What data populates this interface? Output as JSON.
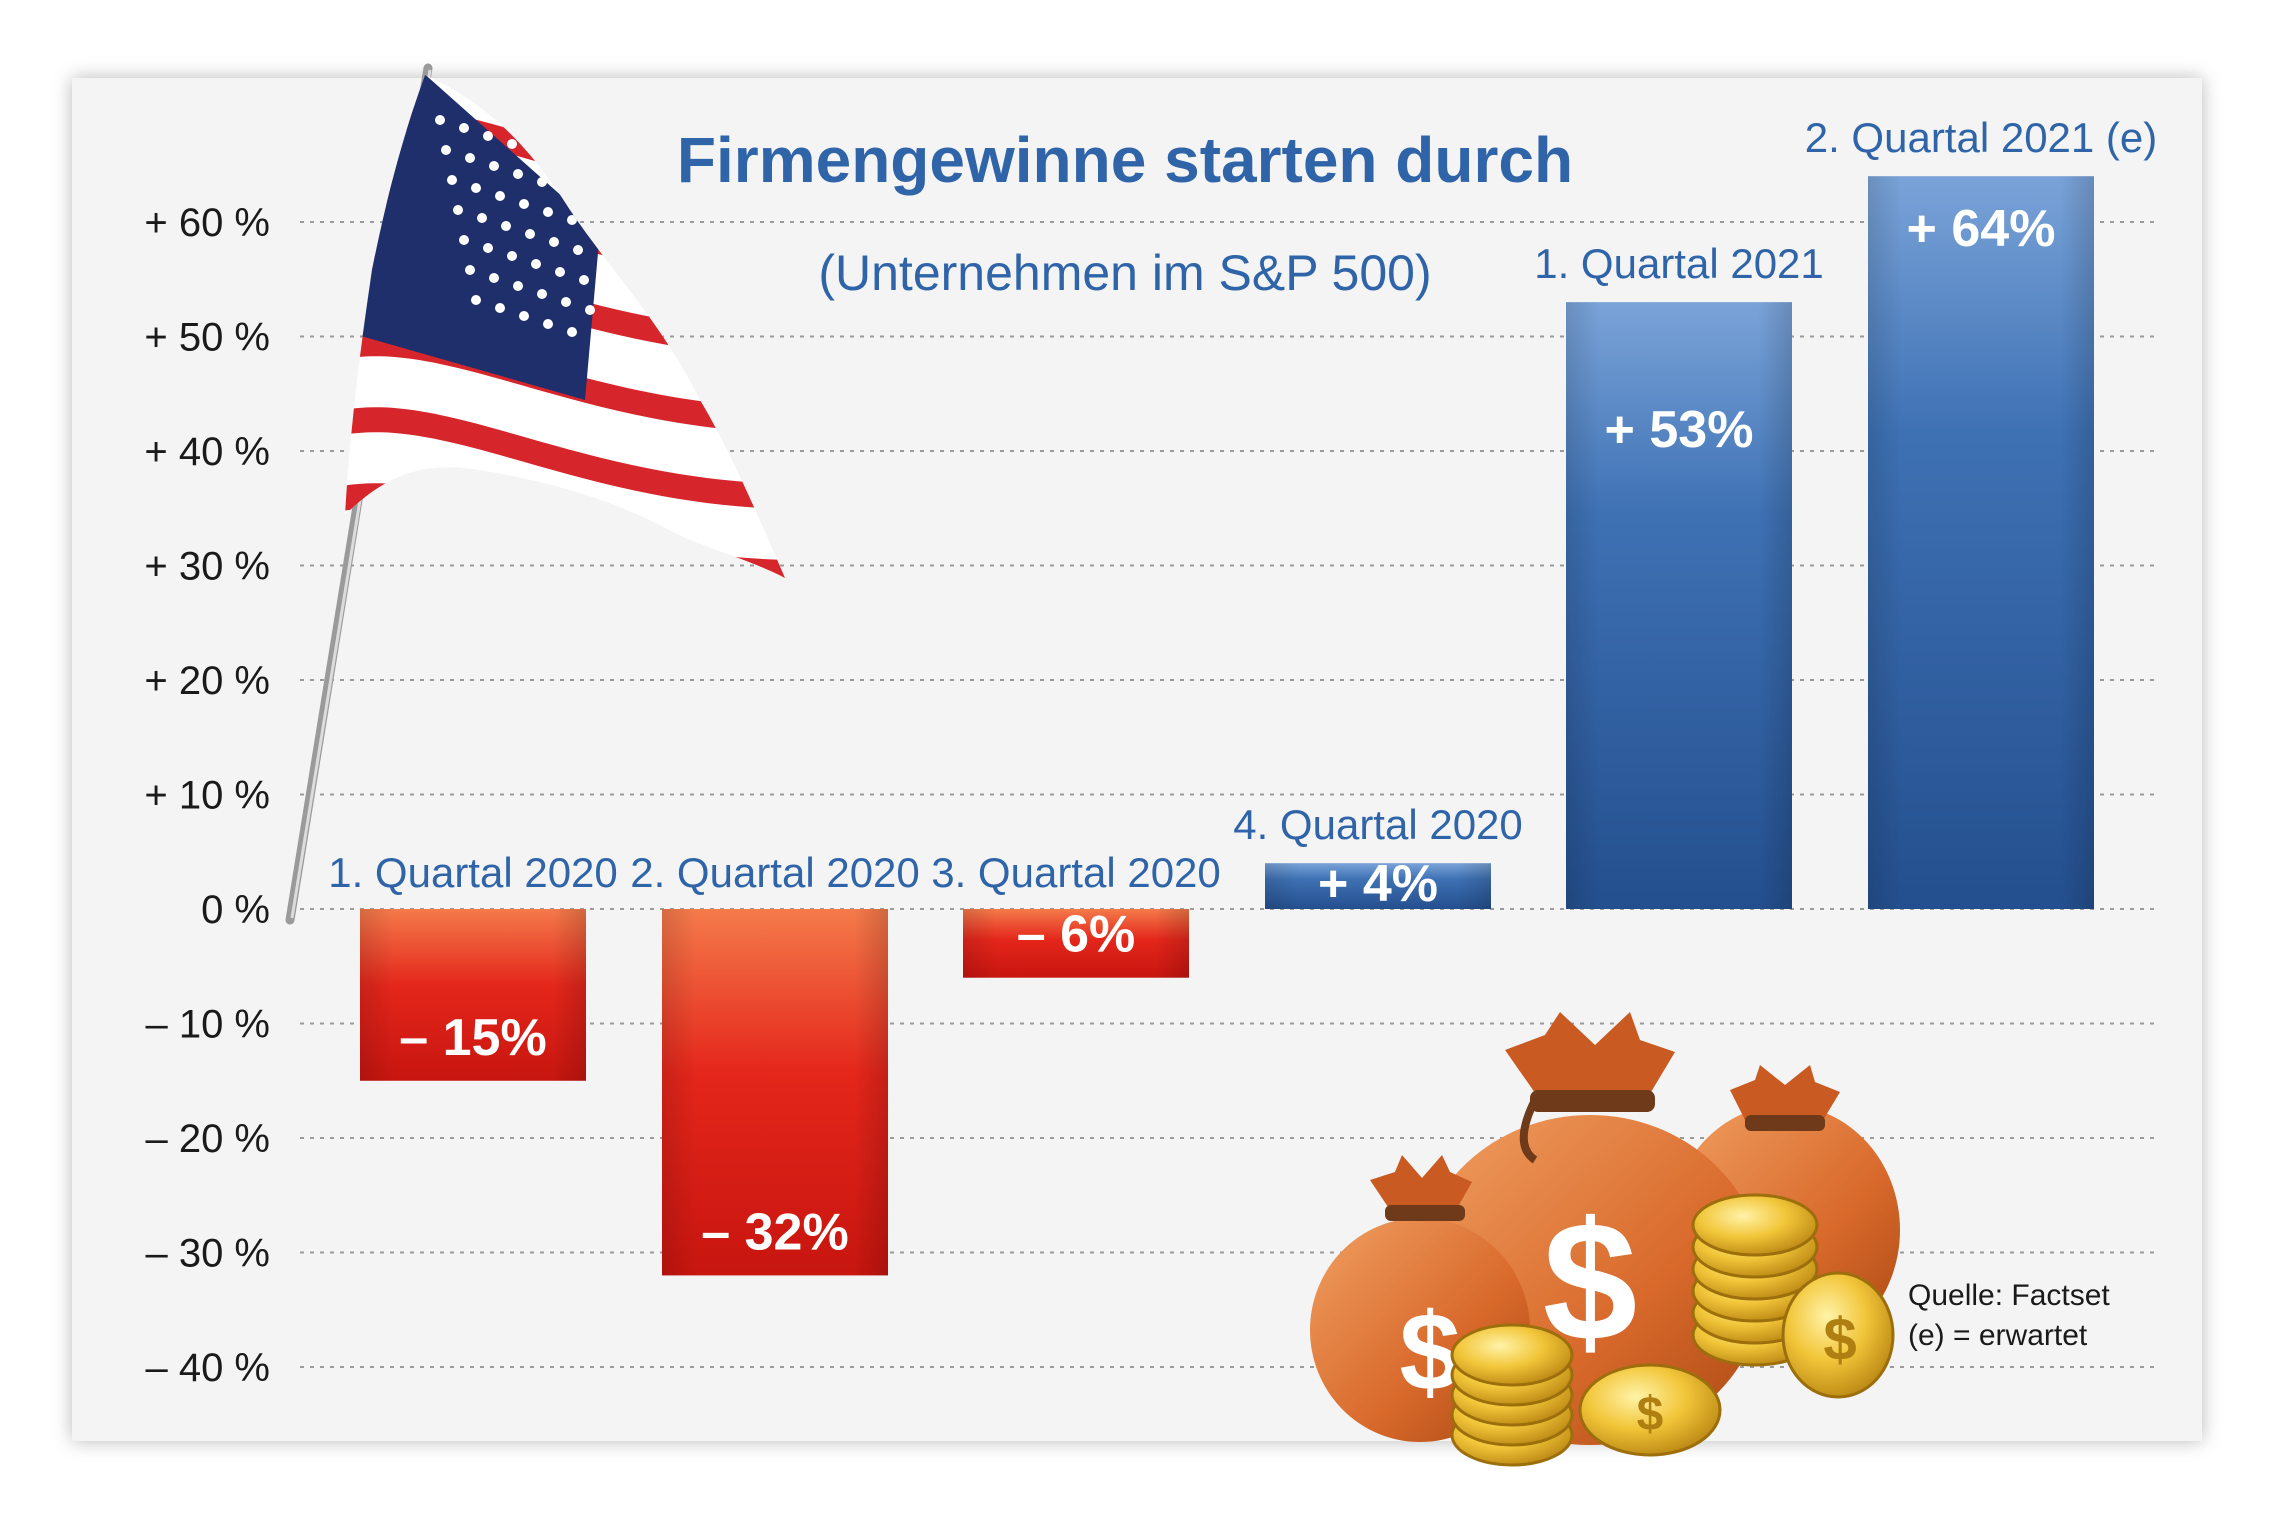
{
  "chart_data": {
    "type": "bar",
    "title": "Firmengewinne starten durch",
    "subtitle": "(Unternehmen im S&P 500)",
    "categories": [
      "1. Quartal 2020",
      "2. Quartal 2020",
      "3. Quartal 2020",
      "4. Quartal 2020",
      "1. Quartal 2021",
      "2. Quartal 2021 (e)"
    ],
    "values": [
      -15,
      -32,
      -6,
      4,
      53,
      64
    ],
    "value_labels": [
      "– 15%",
      "– 32%",
      "– 6%",
      "+ 4%",
      "+ 53%",
      "+ 64%"
    ],
    "y_ticks": [
      60,
      50,
      40,
      30,
      20,
      10,
      0,
      -10,
      -20,
      -30,
      -40
    ],
    "y_tick_labels": [
      "+ 60 %",
      "+ 50 %",
      "+ 40 %",
      "+ 30 %",
      "+ 20 %",
      "+ 10 %",
      "0 %",
      "– 10 %",
      "– 20 %",
      "– 30 %",
      "– 40 %"
    ],
    "ylim": [
      -40,
      60
    ],
    "grid": true,
    "colors": {
      "negative": "#dc1f17",
      "positive": "#2f64a8"
    }
  },
  "source": {
    "line1": "Quelle: Factset",
    "line2": "(e) = erwartet"
  },
  "illustrations": [
    "us-flag",
    "money-bags-and-coins"
  ]
}
